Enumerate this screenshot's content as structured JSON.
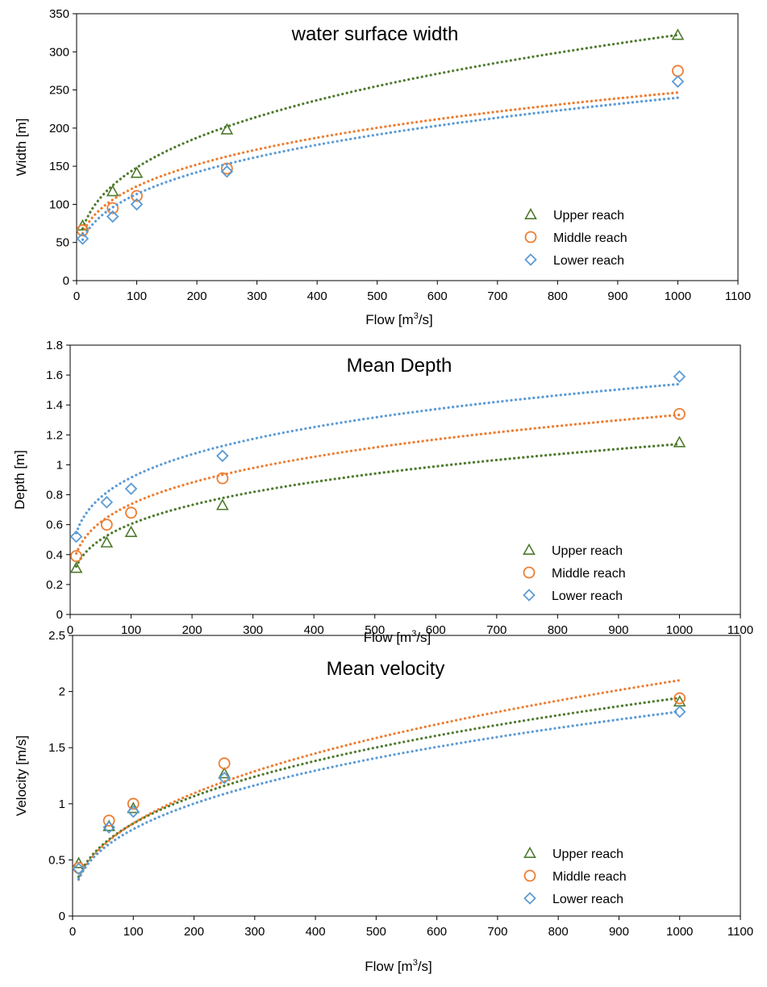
{
  "chart_data": [
    {
      "type": "scatter",
      "title": "water surface width",
      "xlabel": "Flow [m",
      "xlabel_sup": "3",
      "xlabel_tail": "/s]",
      "ylabel": "Width [m]",
      "xlim": [
        0,
        1100
      ],
      "ylim": [
        0,
        350
      ],
      "xticks": [
        0,
        100,
        200,
        300,
        400,
        500,
        600,
        700,
        800,
        900,
        1000,
        1100
      ],
      "yticks": [
        0,
        50,
        100,
        150,
        200,
        250,
        300,
        350
      ],
      "trendline": "power, dotted",
      "legend_position": "lower-right",
      "series": [
        {
          "name": "Upper reach",
          "marker": "triangle",
          "color": "#4E7A2E",
          "points": [
            [
              10,
              72
            ],
            [
              60,
              117
            ],
            [
              100,
              141
            ],
            [
              250,
              198
            ],
            [
              1000,
              322
            ]
          ],
          "fit": {
            "a": 31.41,
            "b": 0.337
          }
        },
        {
          "name": "Middle reach",
          "marker": "circle",
          "color": "#ED7D31",
          "points": [
            [
              10,
              66
            ],
            [
              60,
              95
            ],
            [
              100,
              111
            ],
            [
              250,
              147
            ],
            [
              1000,
              275
            ]
          ],
          "fit": {
            "a": 31.05,
            "b": 0.3
          }
        },
        {
          "name": "Lower reach",
          "marker": "diamond",
          "color": "#5B9BD5",
          "points": [
            [
              10,
              55
            ],
            [
              60,
              84
            ],
            [
              100,
              100
            ],
            [
              250,
              143
            ],
            [
              1000,
              261
            ]
          ],
          "fit": {
            "a": 25.4,
            "b": 0.325
          }
        }
      ]
    },
    {
      "type": "scatter",
      "title": "Mean Depth",
      "xlabel": "Flow [m",
      "xlabel_sup": "3",
      "xlabel_tail": "/s]",
      "ylabel": "Depth [m]",
      "xlim": [
        0,
        1100
      ],
      "ylim": [
        0,
        1.8
      ],
      "xticks": [
        0,
        100,
        200,
        300,
        400,
        500,
        600,
        700,
        800,
        900,
        1000,
        1100
      ],
      "yticks": [
        0,
        0.2,
        0.4,
        0.6,
        0.8,
        1,
        1.2,
        1.4,
        1.6,
        1.8
      ],
      "trendline": "power, dotted",
      "legend_position": "lower-right",
      "series": [
        {
          "name": "Upper reach",
          "marker": "triangle",
          "color": "#4E7A2E",
          "points": [
            [
              10,
              0.31
            ],
            [
              60,
              0.48
            ],
            [
              100,
              0.55
            ],
            [
              250,
              0.73
            ],
            [
              1000,
              1.15
            ]
          ],
          "fit": {
            "a": 0.1707,
            "b": 0.2747
          }
        },
        {
          "name": "Middle reach",
          "marker": "circle",
          "color": "#ED7D31",
          "points": [
            [
              10,
              0.39
            ],
            [
              60,
              0.6
            ],
            [
              100,
              0.68
            ],
            [
              250,
              0.91
            ],
            [
              1000,
              1.34
            ]
          ],
          "fit": {
            "a": 0.2255,
            "b": 0.2573
          }
        },
        {
          "name": "Lower reach",
          "marker": "diamond",
          "color": "#5B9BD5",
          "points": [
            [
              10,
              0.52
            ],
            [
              60,
              0.75
            ],
            [
              100,
              0.84
            ],
            [
              250,
              1.06
            ],
            [
              1000,
              1.59
            ]
          ],
          "fit": {
            "a": 0.3232,
            "b": 0.226
          }
        }
      ]
    },
    {
      "type": "scatter",
      "title": "Mean velocity",
      "xlabel": "Flow [m",
      "xlabel_sup": "3",
      "xlabel_tail": "/s]",
      "ylabel": "Velocity [m/s]",
      "xlim": [
        0,
        1100
      ],
      "ylim": [
        0,
        2.5
      ],
      "xticks": [
        0,
        100,
        200,
        300,
        400,
        500,
        600,
        700,
        800,
        900,
        1000,
        1100
      ],
      "yticks": [
        0,
        0.5,
        1,
        1.5,
        2,
        2.5
      ],
      "trendline": "power, dotted",
      "legend_position": "lower-right",
      "series": [
        {
          "name": "Upper reach",
          "marker": "triangle",
          "color": "#4E7A2E",
          "points": [
            [
              10,
              0.47
            ],
            [
              60,
              0.8
            ],
            [
              100,
              0.96
            ],
            [
              250,
              1.27
            ],
            [
              1000,
              1.91
            ]
          ],
          "fit": {
            "a": 0.1486,
            "b": 0.3722
          }
        },
        {
          "name": "Middle reach",
          "marker": "circle",
          "color": "#ED7D31",
          "points": [
            [
              10,
              0.43
            ],
            [
              60,
              0.85
            ],
            [
              100,
              1.0
            ],
            [
              250,
              1.36
            ],
            [
              1000,
              1.94
            ]
          ],
          "fit": {
            "a": 0.1277,
            "b": 0.4054
          }
        },
        {
          "name": "Lower reach",
          "marker": "diamond",
          "color": "#5B9BD5",
          "points": [
            [
              10,
              0.42
            ],
            [
              60,
              0.79
            ],
            [
              100,
              0.93
            ],
            [
              250,
              1.23
            ],
            [
              1000,
              1.82
            ]
          ],
          "fit": {
            "a": 0.1398,
            "b": 0.3716
          }
        }
      ]
    }
  ]
}
